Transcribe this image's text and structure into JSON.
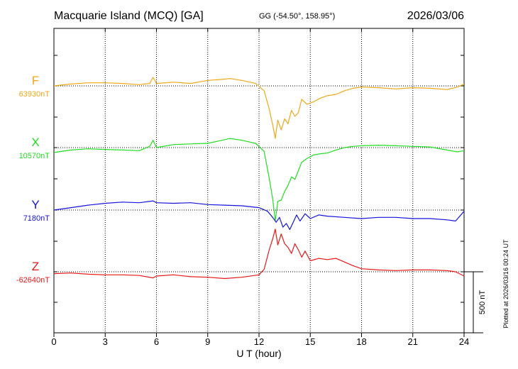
{
  "header": {
    "station": "Macquarie Island (MCQ)  [GA]",
    "coords": "GG (-54.50°, 158.95°)",
    "date": "2026/03/06"
  },
  "plotted_note": "Plotted at 2026/03/16 00:24 UT",
  "scale_bar_label": "500 nT",
  "chart_data": {
    "type": "line",
    "xlabel": "U T (hour)",
    "xlim": [
      0,
      24
    ],
    "x_ticks": [
      "0",
      "3",
      "6",
      "9",
      "12",
      "15",
      "18",
      "21",
      "24"
    ],
    "grid": true,
    "scale_nT": 500,
    "series": [
      {
        "name": "F",
        "baseline_label": "63930nT",
        "color": "#f0a818",
        "x": [
          0,
          1,
          2,
          3,
          4,
          5,
          5.6,
          5.8,
          6,
          7,
          8,
          9,
          10,
          10.3,
          11,
          11.8,
          12.3,
          12.6,
          12.8,
          12.95,
          13.1,
          13.3,
          13.5,
          13.7,
          13.9,
          14.1,
          14.3,
          14.5,
          14.8,
          15.2,
          15.6,
          16,
          16.5,
          17,
          17.5,
          18,
          19,
          20,
          21,
          22,
          23,
          23.6,
          24
        ],
        "y": [
          0,
          15,
          25,
          25,
          20,
          10,
          20,
          70,
          20,
          30,
          20,
          45,
          55,
          60,
          45,
          20,
          -40,
          -190,
          -320,
          -430,
          -280,
          -360,
          -270,
          -310,
          -200,
          -250,
          -220,
          -110,
          -150,
          -130,
          -100,
          -80,
          -70,
          -40,
          -20,
          -10,
          -15,
          -25,
          -15,
          -20,
          -30,
          -10,
          15
        ]
      },
      {
        "name": "X",
        "baseline_label": "10570nT",
        "color": "#22dd22",
        "x": [
          0,
          1,
          2,
          3,
          4,
          5,
          5.6,
          5.8,
          6,
          7,
          8,
          9,
          10,
          10.3,
          11,
          11.8,
          12.3,
          12.6,
          12.8,
          12.95,
          13.1,
          13.3,
          13.5,
          13.7,
          13.9,
          14.1,
          14.3,
          14.5,
          14.8,
          15.2,
          15.6,
          16,
          16.5,
          17,
          17.5,
          18,
          19,
          20,
          21,
          22,
          23,
          23.6,
          24
        ],
        "y": [
          -40,
          -20,
          -10,
          -15,
          -20,
          -25,
          10,
          60,
          0,
          25,
          30,
          35,
          65,
          75,
          60,
          35,
          -30,
          -250,
          -420,
          -600,
          -440,
          -430,
          -360,
          -310,
          -240,
          -260,
          -190,
          -120,
          -90,
          -60,
          -50,
          -45,
          -20,
          0,
          10,
          15,
          20,
          15,
          10,
          5,
          -20,
          -35,
          -25
        ]
      },
      {
        "name": "Y",
        "baseline_label": "7180nT",
        "color": "#1414dd",
        "x": [
          0,
          1,
          2,
          3,
          4,
          5,
          5.8,
          6,
          7,
          8,
          9,
          10,
          11,
          12,
          12.5,
          12.8,
          13,
          13.2,
          13.4,
          13.6,
          13.8,
          14,
          14.2,
          14.4,
          14.7,
          15,
          15.5,
          16,
          17,
          18,
          19,
          20,
          21,
          22,
          23,
          23.5,
          24
        ],
        "y": [
          0,
          20,
          40,
          55,
          65,
          60,
          75,
          60,
          55,
          60,
          45,
          40,
          35,
          20,
          -10,
          -60,
          -100,
          -60,
          -140,
          -110,
          -160,
          -100,
          -40,
          -90,
          -30,
          -70,
          -40,
          -50,
          -60,
          -70,
          -60,
          -60,
          -70,
          -70,
          -80,
          -90,
          -10
        ]
      },
      {
        "name": "Z",
        "baseline_label": "-62640nT",
        "color": "#e81818",
        "x": [
          0,
          1,
          2,
          3,
          4,
          5,
          5.8,
          6,
          7,
          8,
          9,
          10,
          11,
          12,
          12.3,
          12.6,
          12.8,
          12.95,
          13.1,
          13.3,
          13.5,
          13.7,
          13.9,
          14.1,
          14.3,
          14.5,
          14.7,
          15,
          15.5,
          16,
          16.5,
          17,
          17.5,
          18,
          19,
          20,
          21,
          22,
          23,
          23.5,
          24
        ],
        "y": [
          -15,
          -10,
          -20,
          -25,
          -25,
          -30,
          -50,
          -35,
          -25,
          -40,
          -45,
          -55,
          -45,
          -25,
          20,
          180,
          270,
          350,
          220,
          310,
          230,
          200,
          150,
          230,
          180,
          120,
          170,
          90,
          110,
          100,
          110,
          80,
          50,
          25,
          15,
          10,
          15,
          15,
          10,
          0,
          -35
        ]
      }
    ]
  }
}
